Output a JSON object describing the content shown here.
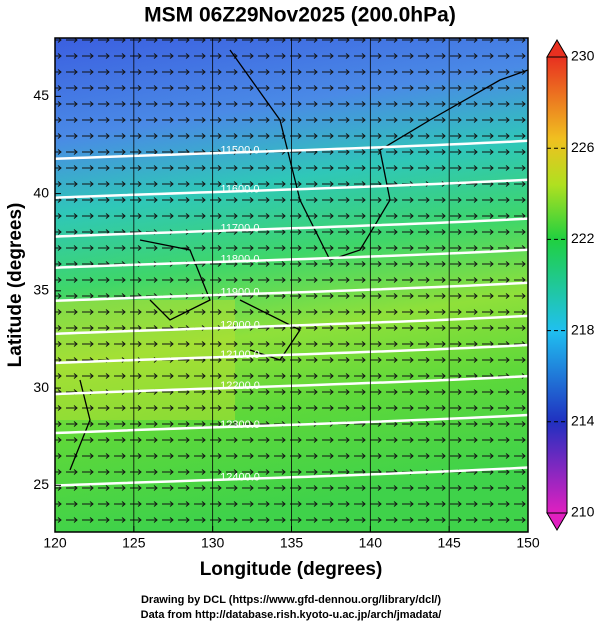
{
  "chart_data": {
    "type": "map",
    "title": "MSM 06Z29Nov2025 (200.0hPa)",
    "x_label": "Longitude (degrees)",
    "y_label": "Latitude  (degrees)",
    "xlim": [
      120,
      150
    ],
    "xticks": [
      120,
      125,
      130,
      135,
      140,
      145,
      150
    ],
    "ylim": [
      22.6,
      48
    ],
    "yticks": [
      25,
      30,
      35,
      40,
      45
    ],
    "colorbar": {
      "lim": [
        210,
        230
      ],
      "ticks": [
        210,
        214,
        218,
        222,
        226,
        230
      ]
    },
    "contours": [
      {
        "value": 11500,
        "label": "11500.0",
        "lat": 42.2
      },
      {
        "value": 11600,
        "label": "11600.0",
        "lat": 40.2
      },
      {
        "value": 11700,
        "label": "11700.0",
        "lat": 38.2
      },
      {
        "value": 11800,
        "label": "11800.0",
        "lat": 36.6
      },
      {
        "value": 11900,
        "label": "11900.0",
        "lat": 34.9
      },
      {
        "value": 12000,
        "label": "12000.0",
        "lat": 33.2
      },
      {
        "value": 12100,
        "label": "12100.0",
        "lat": 31.7
      },
      {
        "value": 12200,
        "label": "12200.0",
        "lat": 30.1
      },
      {
        "value": 12300,
        "label": "12300.0",
        "lat": 28.1
      },
      {
        "value": 12400,
        "label": "12400.0",
        "lat": 25.4
      }
    ],
    "footer": [
      "Drawing by DCL (https://www.gfd-dennou.org/library/dcl/)",
      "Data from http://database.rish.kyoto-u.ac.jp/arch/jmadata/"
    ]
  }
}
